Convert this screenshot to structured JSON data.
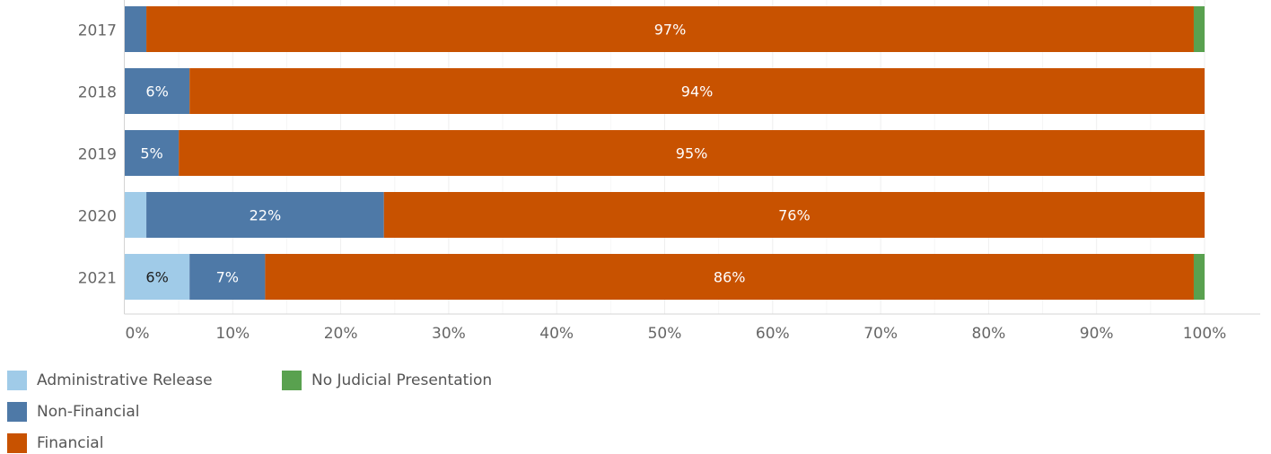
{
  "chart_data": {
    "type": "bar",
    "orientation": "horizontal",
    "stacked": true,
    "categories": [
      "2017",
      "2018",
      "2019",
      "2020",
      "2021"
    ],
    "series": [
      {
        "name": "Administrative Release",
        "color": "#A0CBE8",
        "values": [
          0,
          0,
          0,
          2,
          6
        ],
        "labels": [
          "",
          "",
          "",
          "",
          "6%"
        ]
      },
      {
        "name": "Non-Financial",
        "color": "#4E79A7",
        "values": [
          2,
          6,
          5,
          22,
          7
        ],
        "labels": [
          "",
          "6%",
          "5%",
          "22%",
          "7%"
        ]
      },
      {
        "name": "Financial",
        "color": "#C85200",
        "values": [
          97,
          94,
          95,
          76,
          86
        ],
        "labels": [
          "97%",
          "94%",
          "95%",
          "76%",
          "86%"
        ]
      },
      {
        "name": "No Judicial Presentation",
        "color": "#59A14F",
        "values": [
          1,
          0,
          0,
          0,
          1
        ],
        "labels": [
          "",
          "",
          "",
          "",
          ""
        ]
      }
    ],
    "x_ticks": [
      "0%",
      "10%",
      "20%",
      "30%",
      "40%",
      "50%",
      "60%",
      "70%",
      "80%",
      "90%",
      "100%"
    ],
    "xlim": [
      0,
      100
    ],
    "grid": true,
    "legend_position": "bottom-left"
  },
  "legend": {
    "items": [
      {
        "label": "Administrative Release",
        "color": "#A0CBE8"
      },
      {
        "label": "No Judicial Presentation",
        "color": "#59A14F"
      },
      {
        "label": "Non-Financial",
        "color": "#4E79A7"
      },
      {
        "label": "Financial",
        "color": "#C85200"
      }
    ]
  }
}
